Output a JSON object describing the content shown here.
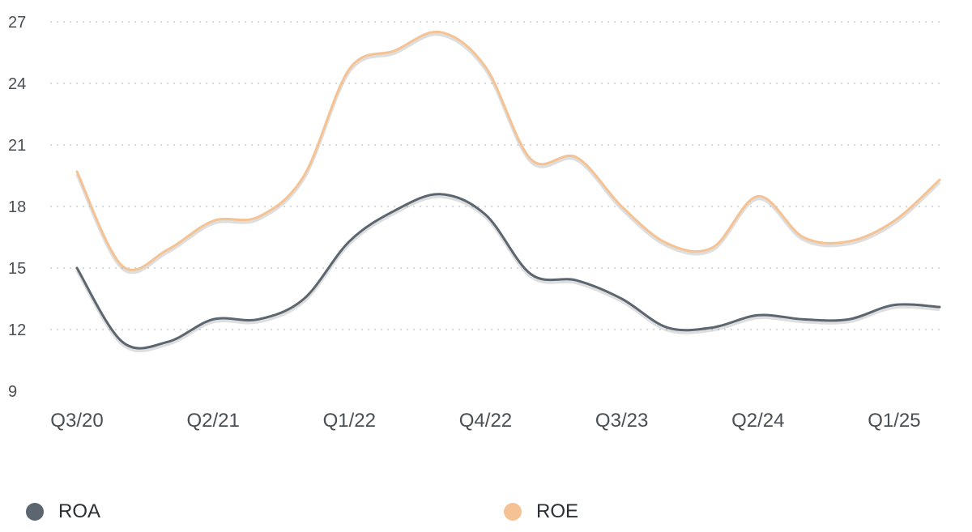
{
  "chart_data": {
    "type": "line",
    "x": [
      "Q3/20",
      "Q4/20",
      "Q1/21",
      "Q2/21",
      "Q3/21",
      "Q4/21",
      "Q1/22",
      "Q2/22",
      "Q3/22",
      "Q4/22",
      "Q1/23",
      "Q2/23",
      "Q3/23",
      "Q4/23",
      "Q1/24",
      "Q2/24",
      "Q3/24",
      "Q4/24",
      "Q1/25",
      "Q2/25"
    ],
    "x_tick_labels": [
      "Q3/20",
      "Q2/21",
      "Q1/22",
      "Q4/22",
      "Q3/23",
      "Q2/24",
      "Q1/25"
    ],
    "ylim": [
      9,
      27
    ],
    "y_ticks": [
      9,
      12,
      15,
      18,
      21,
      24,
      27
    ],
    "grid": "horizontal dotted",
    "legend_position": "bottom",
    "series": [
      {
        "name": "ROA",
        "color": "#5b6670",
        "values": [
          15.0,
          11.4,
          11.4,
          12.5,
          12.5,
          13.5,
          16.3,
          17.8,
          18.6,
          17.6,
          14.7,
          14.4,
          13.5,
          12.1,
          12.1,
          12.7,
          12.5,
          12.5,
          13.2,
          13.1
        ]
      },
      {
        "name": "ROE",
        "color": "#f5c393",
        "values": [
          19.7,
          15.1,
          15.9,
          17.3,
          17.5,
          19.5,
          24.7,
          25.6,
          26.5,
          24.8,
          20.3,
          20.4,
          18.0,
          16.2,
          16.0,
          18.5,
          16.5,
          16.3,
          17.3,
          19.3
        ]
      }
    ]
  }
}
